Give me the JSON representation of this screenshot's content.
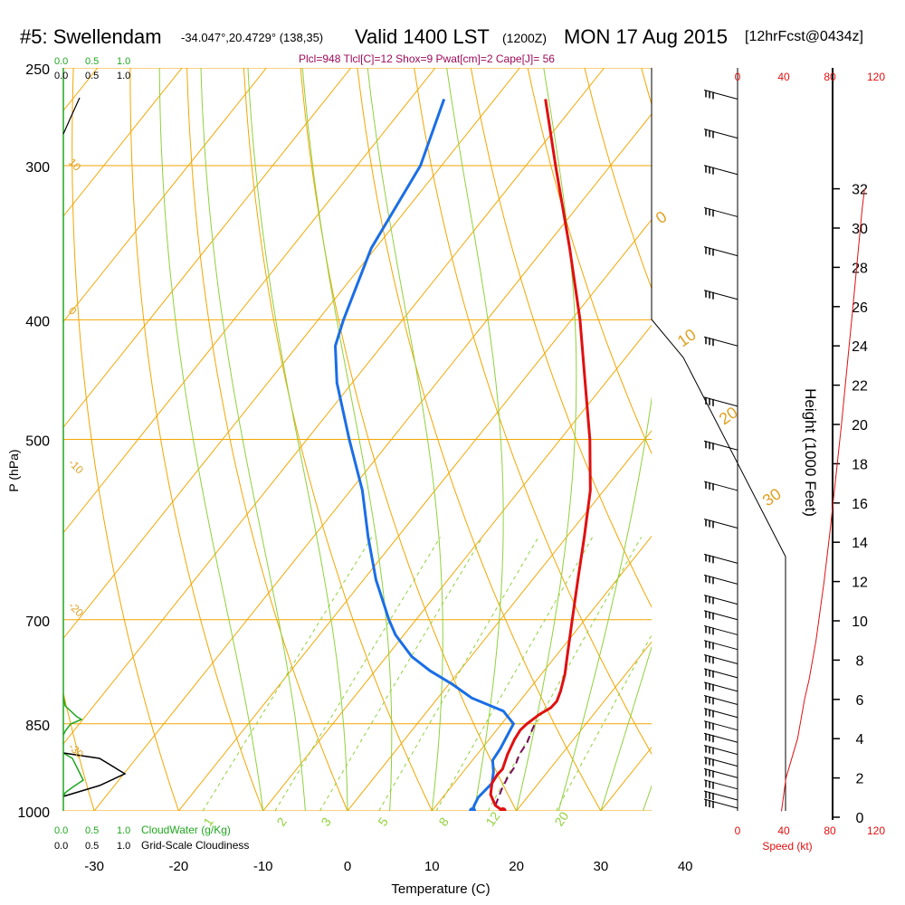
{
  "header": {
    "station": "#5: Swellendam",
    "coords": "-34.047°,20.4729° (138,35)",
    "valid": "Valid 1400 LST",
    "zulu": "(1200Z)",
    "date": "MON 17 Aug 2015",
    "forecast": "[12hrFcst@0434z]",
    "indices": "Plcl=948 Tlcl[C]=12 Shox=9 Pwat[cm]=2 Cape[J]= 56"
  },
  "chart_data": {
    "type": "skew-t",
    "xlabel": "Temperature (C)",
    "ylabel": "P (hPa)",
    "right_label": "Height (1000 Feet)",
    "speed_label": "Speed (kt)",
    "cloudwater_label": "CloudWater (g/Kg)",
    "cloudiness_label": "Grid-Scale Cloudiness",
    "temp_ticks": [
      -30,
      -20,
      -10,
      0,
      10,
      20,
      30,
      40
    ],
    "pressure_ticks": [
      250,
      300,
      400,
      500,
      700,
      850,
      1000
    ],
    "height_ticks": [
      0,
      2,
      4,
      6,
      8,
      10,
      12,
      14,
      16,
      18,
      20,
      22,
      24,
      26,
      28,
      30,
      32
    ],
    "speed_ticks": [
      0,
      40,
      80,
      120
    ],
    "scale_ticks": [
      "0.0",
      "0.5",
      "1.0"
    ],
    "dry_adiabat_labels": [
      "10",
      "0",
      "-10",
      "-20",
      "-30"
    ],
    "isotherm_labels": [
      "0",
      "10",
      "20",
      "30"
    ],
    "mixing_ratio_labels": [
      "1",
      "2",
      "3",
      "5",
      "8",
      "12",
      "20"
    ],
    "temperature": {
      "pressure": [
        1000,
        990,
        970,
        950,
        935,
        925,
        900,
        875,
        860,
        850,
        835,
        825,
        815,
        800,
        775,
        750,
        700,
        650,
        600,
        550,
        500,
        450,
        400,
        350,
        300,
        265
      ],
      "values": [
        18.4,
        17.0,
        15.4,
        14.5,
        14.3,
        14.4,
        13.6,
        13.0,
        12.8,
        13.0,
        13.6,
        14.3,
        14.4,
        13.9,
        12.8,
        11.4,
        8.5,
        5.4,
        2.1,
        -1.6,
        -6.5,
        -12.4,
        -19.0,
        -27.0,
        -36.5,
        -44.0
      ]
    },
    "dewpoint": {
      "pressure": [
        1000,
        990,
        975,
        950,
        930,
        910,
        890,
        870,
        850,
        830,
        810,
        790,
        770,
        750,
        720,
        700,
        650,
        600,
        550,
        500,
        450,
        420,
        400,
        350,
        300,
        265
      ],
      "values": [
        14.8,
        14.5,
        14.2,
        14.5,
        13.6,
        12.4,
        12.2,
        11.8,
        11.4,
        9.0,
        4.0,
        0.5,
        -3.5,
        -7.0,
        -11.0,
        -13.2,
        -18.5,
        -23.5,
        -28.6,
        -35.0,
        -41.8,
        -45.5,
        -47.0,
        -50.5,
        -52.5,
        -56.0
      ]
    },
    "parcel": {
      "pressure": [
        990,
        960,
        940,
        920,
        900,
        880,
        860,
        845
      ],
      "values": [
        17.0,
        16.2,
        15.8,
        15.6,
        15.0,
        14.8,
        14.2,
        13.8
      ]
    },
    "wind_speed": {
      "height_kft": [
        0.3,
        2.0,
        4.0,
        6.0,
        7.0,
        9.0,
        12.0,
        14.5,
        20.0,
        26.0,
        31.0,
        32.0
      ],
      "values": [
        38,
        42,
        52,
        58,
        62,
        68,
        75,
        80,
        90,
        100,
        108,
        110
      ]
    },
    "wind_barbs_pressure": [
      265,
      285,
      305,
      330,
      355,
      385,
      420,
      470,
      510,
      550,
      590,
      630,
      655,
      680,
      700,
      720,
      740,
      760,
      780,
      800,
      820,
      840,
      860,
      880,
      900,
      920,
      940,
      960,
      980,
      995
    ]
  }
}
